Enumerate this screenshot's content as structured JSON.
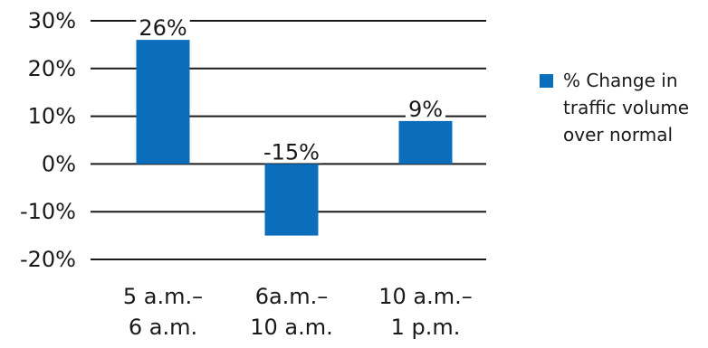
{
  "chart_data": {
    "type": "bar",
    "categories": [
      [
        "5 a.m.–",
        "6 a.m."
      ],
      [
        "6a.m.–",
        "10 a.m."
      ],
      [
        "10 a.m.–",
        "1 p.m."
      ]
    ],
    "series": [
      {
        "name": "% Change in traffic volume over normal",
        "values": [
          26,
          -15,
          9
        ],
        "color": "#0a6ebd"
      }
    ],
    "data_labels": [
      "26%",
      "-15%",
      "9%"
    ],
    "yticks": [
      30,
      20,
      10,
      0,
      -10,
      -20
    ],
    "ytick_labels": [
      "30%",
      "20%",
      "10%",
      "0%",
      "-10%",
      "-20%"
    ],
    "ylim": [
      -20,
      30
    ],
    "grid": true,
    "legend_position": "right",
    "title": "",
    "xlabel": "",
    "ylabel": ""
  },
  "legend": {
    "label": "% Change in traffic volume over normal",
    "color": "#0a6ebd"
  }
}
